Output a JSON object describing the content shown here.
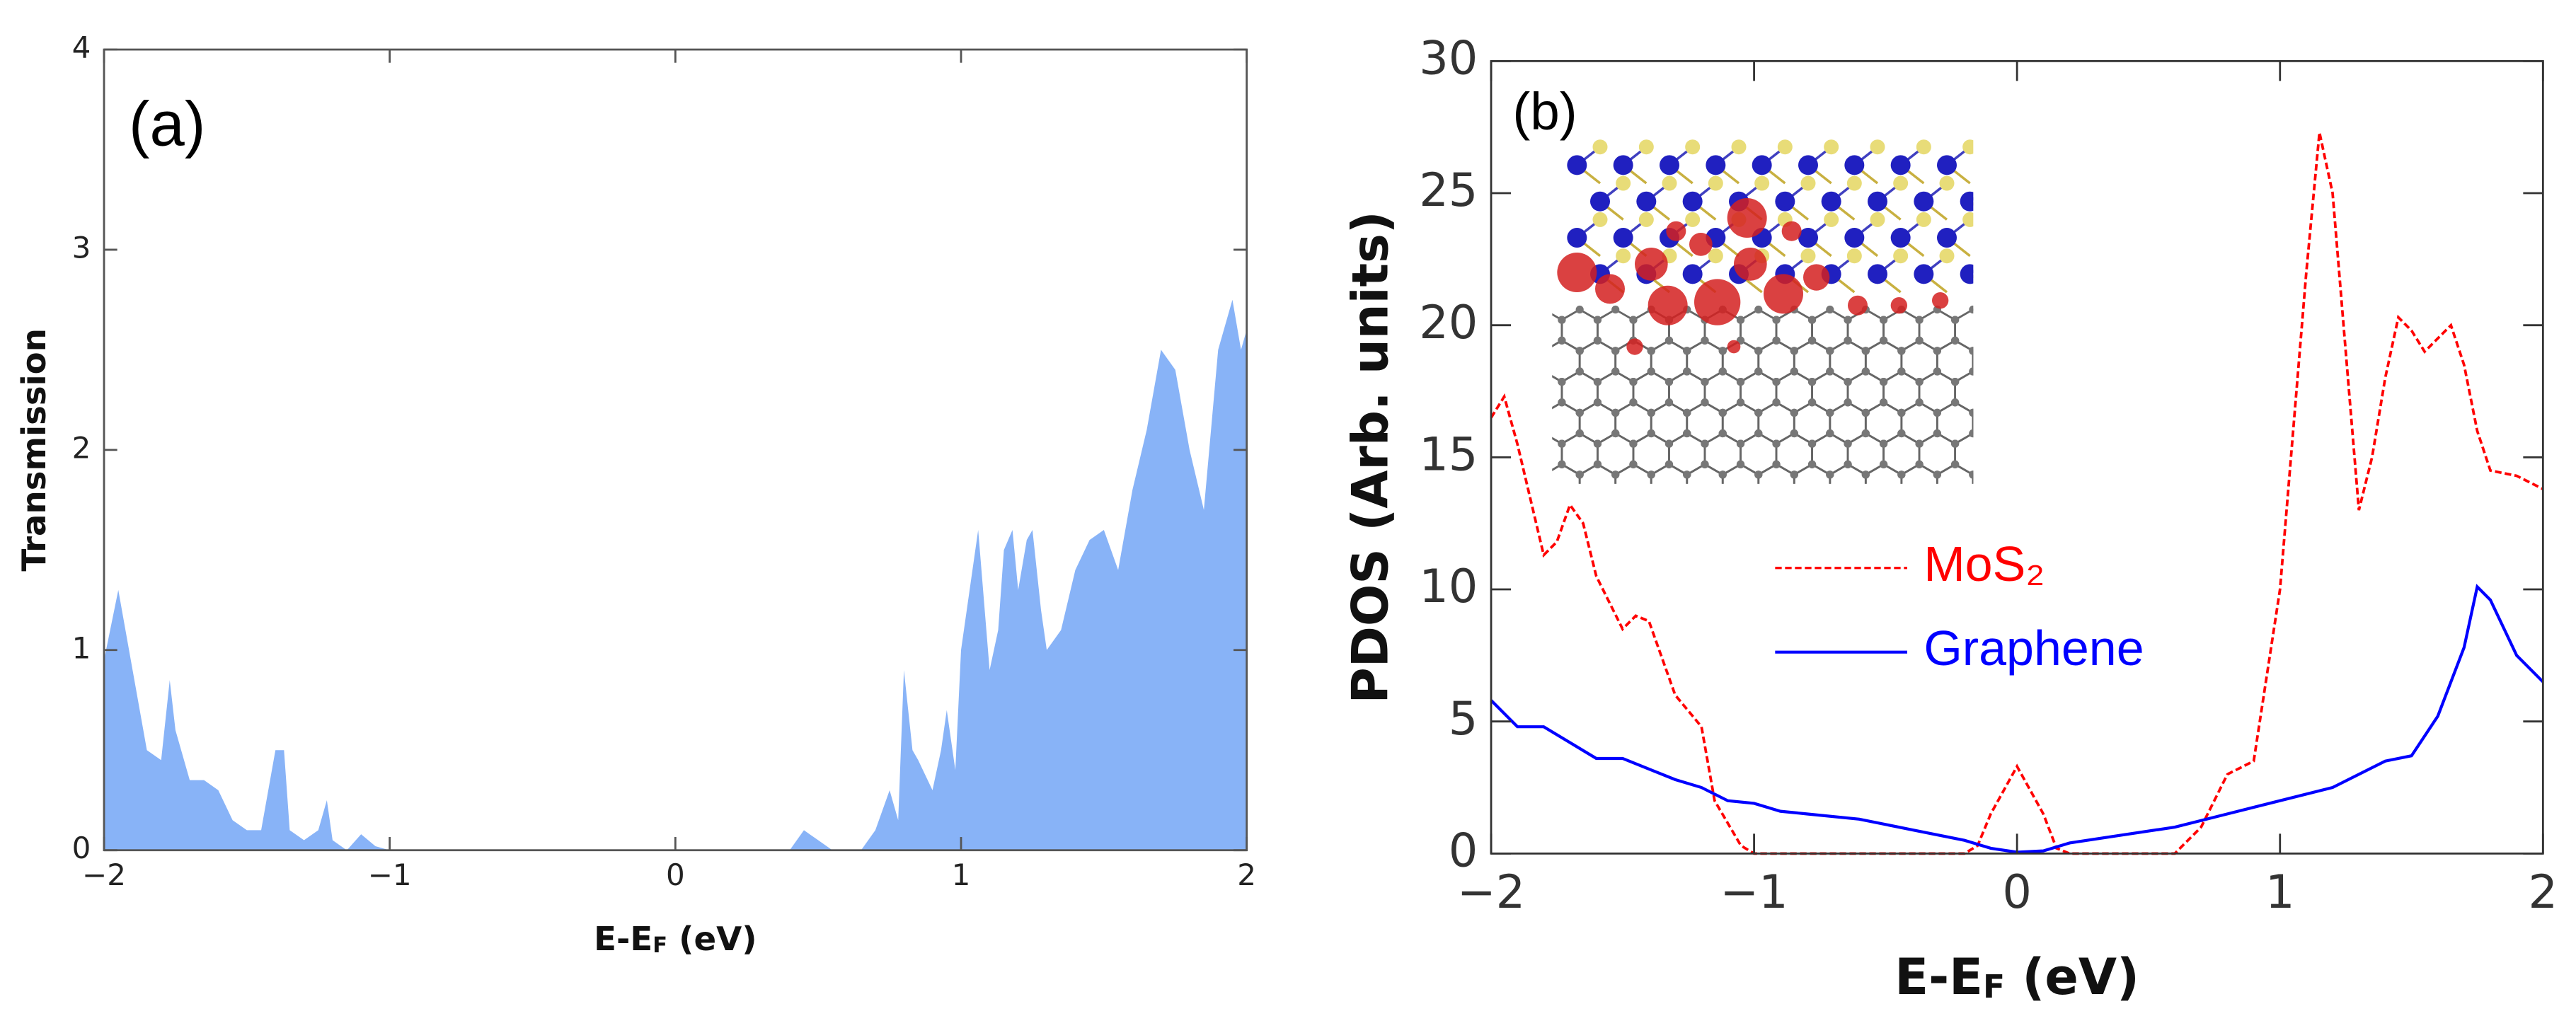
{
  "chart_data": [
    {
      "type": "area",
      "annotation": "(a)",
      "ylabel": "Transmission",
      "xlabel_parts": [
        "E-E",
        "F",
        " (eV)"
      ],
      "color": "#88b3f7",
      "xlim": [
        -2,
        2
      ],
      "ylim": [
        0,
        4
      ],
      "xticks": [
        {
          "value": -2,
          "label": "−2"
        },
        {
          "value": -1,
          "label": "−1"
        },
        0,
        1,
        2
      ],
      "yticks": [
        0,
        1,
        2,
        3,
        4
      ],
      "x": [
        -2.0,
        -1.95,
        -1.9,
        -1.85,
        -1.8,
        -1.77,
        -1.75,
        -1.7,
        -1.65,
        -1.6,
        -1.55,
        -1.5,
        -1.45,
        -1.4,
        -1.37,
        -1.35,
        -1.3,
        -1.25,
        -1.22,
        -1.2,
        -1.15,
        -1.1,
        -1.05,
        -1.0,
        0.4,
        0.45,
        0.5,
        0.55,
        0.65,
        0.7,
        0.75,
        0.78,
        0.8,
        0.83,
        0.85,
        0.9,
        0.93,
        0.95,
        0.98,
        1.0,
        1.03,
        1.06,
        1.1,
        1.13,
        1.15,
        1.18,
        1.2,
        1.23,
        1.25,
        1.28,
        1.3,
        1.35,
        1.4,
        1.45,
        1.5,
        1.55,
        1.6,
        1.65,
        1.7,
        1.75,
        1.8,
        1.85,
        1.9,
        1.95,
        1.98,
        2.0
      ],
      "values": [
        0.95,
        1.3,
        0.9,
        0.5,
        0.45,
        0.85,
        0.6,
        0.35,
        0.35,
        0.3,
        0.15,
        0.1,
        0.1,
        0.5,
        0.5,
        0.1,
        0.05,
        0.1,
        0.25,
        0.05,
        0,
        0.08,
        0.02,
        0,
        0,
        0.1,
        0.05,
        0,
        0,
        0.1,
        0.3,
        0.15,
        0.9,
        0.5,
        0.45,
        0.3,
        0.5,
        0.7,
        0.4,
        1.0,
        1.3,
        1.6,
        0.9,
        1.1,
        1.5,
        1.6,
        1.3,
        1.55,
        1.6,
        1.2,
        1.0,
        1.1,
        1.4,
        1.55,
        1.6,
        1.4,
        1.8,
        2.1,
        2.5,
        2.4,
        2.0,
        1.7,
        2.5,
        2.75,
        2.5,
        2.6
      ]
    },
    {
      "type": "line",
      "annotation": "(b)",
      "ylabel": "PDOS (Arb. units)",
      "xlabel_parts": [
        "E-E",
        "F",
        " (eV)"
      ],
      "xlim": [
        -2,
        2
      ],
      "ylim": [
        0,
        30
      ],
      "xticks": [
        {
          "value": -2,
          "label": "−2"
        },
        {
          "value": -1,
          "label": "−1"
        },
        0,
        1,
        2
      ],
      "yticks": [
        0,
        5,
        10,
        15,
        20,
        25,
        30
      ],
      "legend": "center",
      "series": [
        {
          "name": "MoS₂",
          "color": "#ff0000",
          "dash": true,
          "x": [
            -2.0,
            -1.95,
            -1.9,
            -1.8,
            -1.75,
            -1.7,
            -1.65,
            -1.6,
            -1.5,
            -1.45,
            -1.4,
            -1.3,
            -1.2,
            -1.15,
            -1.05,
            -1.0,
            -0.2,
            -0.15,
            -0.1,
            0.0,
            0.1,
            0.15,
            0.2,
            0.6,
            0.7,
            0.8,
            0.9,
            1.0,
            1.1,
            1.15,
            1.2,
            1.25,
            1.3,
            1.35,
            1.4,
            1.45,
            1.5,
            1.55,
            1.6,
            1.65,
            1.7,
            1.75,
            1.8,
            1.9,
            2.0
          ],
          "values": [
            16.5,
            17.3,
            15.5,
            11.3,
            11.8,
            13.2,
            12.5,
            10.5,
            8.5,
            9.0,
            8.8,
            6.0,
            4.8,
            2.0,
            0.3,
            0,
            0,
            0.3,
            1.5,
            3.3,
            1.5,
            0.2,
            0,
            0,
            1.0,
            3.0,
            3.5,
            10,
            22,
            27.3,
            25,
            19,
            13,
            15,
            18,
            20.3,
            19.8,
            19,
            19.5,
            20,
            18.5,
            16,
            14.5,
            14.3,
            13.8
          ]
        },
        {
          "name": "Graphene",
          "color": "#0000ff",
          "dash": false,
          "x": [
            -2.0,
            -1.9,
            -1.8,
            -1.7,
            -1.6,
            -1.5,
            -1.4,
            -1.3,
            -1.2,
            -1.1,
            -1.0,
            -0.9,
            -0.8,
            -0.6,
            -0.4,
            -0.2,
            -0.1,
            0.0,
            0.1,
            0.2,
            0.4,
            0.6,
            0.8,
            1.0,
            1.2,
            1.3,
            1.4,
            1.5,
            1.6,
            1.7,
            1.75,
            1.8,
            1.9,
            2.0
          ],
          "values": [
            5.8,
            4.8,
            4.8,
            4.2,
            3.6,
            3.6,
            3.2,
            2.8,
            2.5,
            2.0,
            1.9,
            1.6,
            1.5,
            1.3,
            0.9,
            0.5,
            0.2,
            0.05,
            0.1,
            0.4,
            0.7,
            1.0,
            1.5,
            2.0,
            2.5,
            3.0,
            3.5,
            3.7,
            5.2,
            7.8,
            10.1,
            9.6,
            7.5,
            6.5
          ]
        }
      ]
    }
  ]
}
